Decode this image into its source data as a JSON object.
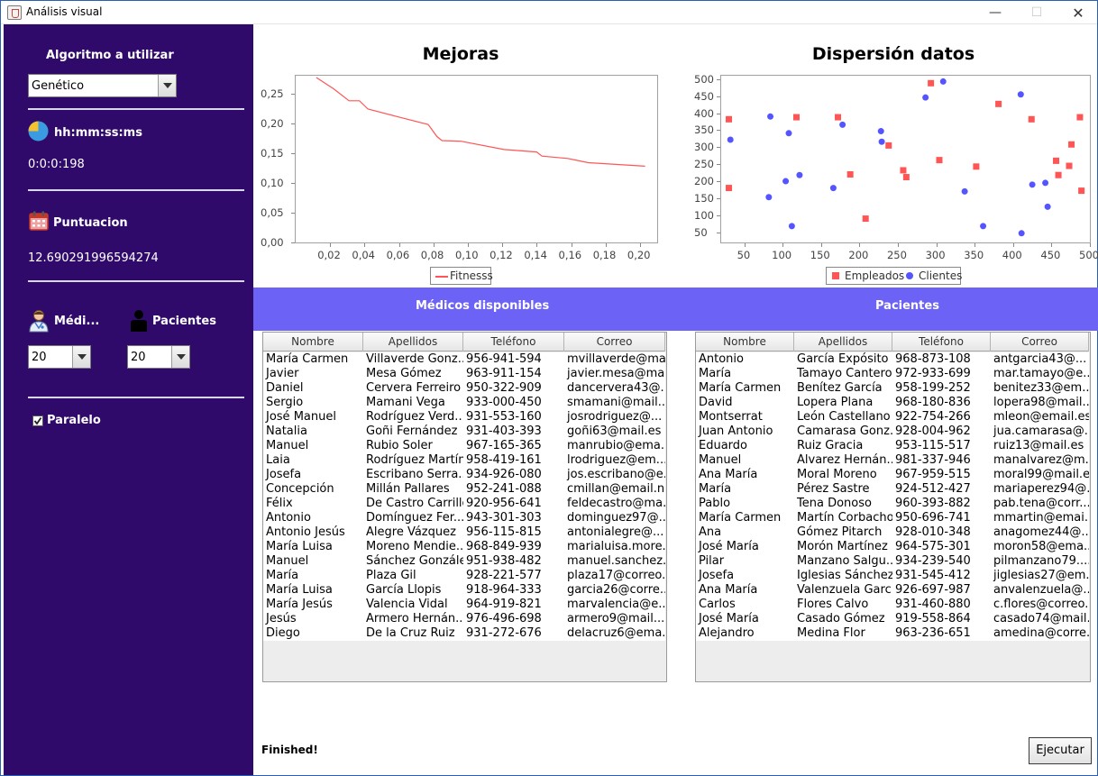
{
  "window": {
    "title": "Análisis visual",
    "minimize": "—",
    "maximize": "☐",
    "close": "✕"
  },
  "sidebar": {
    "algorithm_label": "Algoritmo a utilizar",
    "algorithm_value": "Genético",
    "time_label": "hh:mm:ss:ms",
    "time_value": "0:0:0:198",
    "score_label": "Puntuacion",
    "score_value": "12.690291996594274",
    "medicos_label": "Médi...",
    "pacientes_label": "Pacientes",
    "medicos_count": "20",
    "pacientes_count": "20",
    "paralelo_label": "Paralelo",
    "paralelo_checked": true
  },
  "mejoras_chart": {
    "title": "Mejoras",
    "y_ticks": [
      "0,25",
      "0,20",
      "0,15",
      "0,10",
      "0,05",
      "0,00"
    ],
    "x_ticks": [
      "0,02",
      "0,04",
      "0,06",
      "0,08",
      "0,10",
      "0,12",
      "0,14",
      "0,16",
      "0,18",
      "0,20"
    ],
    "legend": "Fitnesss",
    "line_color": "#ff5555"
  },
  "dispersion_chart": {
    "title": "Dispersión datos",
    "y_ticks": [
      "500",
      "450",
      "400",
      "350",
      "300",
      "250",
      "200",
      "150",
      "100",
      "50"
    ],
    "x_ticks": [
      "50",
      "100",
      "150",
      "200",
      "250",
      "300",
      "350",
      "400",
      "450",
      "500"
    ],
    "legend_a": "Empleados",
    "legend_b": "Clientes",
    "color_a": "#ff5555",
    "color_b": "#5555ff"
  },
  "chart_data": [
    {
      "type": "line",
      "title": "Mejoras",
      "series": [
        {
          "name": "Fitnesss",
          "x": [
            0.012,
            0.022,
            0.031,
            0.037,
            0.042,
            0.058,
            0.077,
            0.082,
            0.085,
            0.096,
            0.121,
            0.14,
            0.143,
            0.158,
            0.17,
            0.203
          ],
          "y": [
            0.277,
            0.258,
            0.238,
            0.238,
            0.224,
            0.212,
            0.198,
            0.178,
            0.171,
            0.17,
            0.156,
            0.152,
            0.145,
            0.141,
            0.134,
            0.128
          ]
        }
      ],
      "xlim": [
        0,
        0.21
      ],
      "ylim": [
        0,
        0.28
      ]
    },
    {
      "type": "scatter",
      "title": "Dispersión datos",
      "series": [
        {
          "name": "Empleados",
          "x": [
            30,
            30,
            118,
            172,
            188,
            208,
            238,
            257,
            261,
            293,
            304,
            352,
            381,
            424,
            456,
            459,
            473,
            476,
            487,
            489
          ],
          "y": [
            180,
            382,
            388,
            388,
            220,
            90,
            305,
            232,
            212,
            488,
            262,
            243,
            427,
            382,
            260,
            218,
            245,
            308,
            388,
            172
          ]
        },
        {
          "name": "Clientes",
          "x": [
            32,
            82,
            84,
            104,
            108,
            112,
            122,
            166,
            178,
            228,
            229,
            286,
            309,
            337,
            361,
            410,
            411,
            425,
            442,
            445
          ],
          "y": [
            322,
            153,
            390,
            200,
            341,
            68,
            218,
            180,
            366,
            347,
            316,
            446,
            493,
            170,
            68,
            455,
            47,
            190,
            195,
            125
          ]
        }
      ],
      "xlim": [
        20,
        500
      ],
      "ylim": [
        20,
        510
      ]
    }
  ],
  "medicos": {
    "header": "Médicos disponibles",
    "columns": [
      "Nombre",
      "Apellidos",
      "Teléfono",
      "Correo"
    ],
    "rows": [
      [
        "María Carmen",
        "Villaverde Gonz...",
        "956-941-594",
        "mvillaverde@ma..."
      ],
      [
        "Javier",
        "Mesa Gómez",
        "963-911-154",
        "javier.mesa@ma..."
      ],
      [
        "Daniel",
        "Cervera Ferreiro",
        "950-322-909",
        "dancervera43@..."
      ],
      [
        "Sergio",
        "Mamani Vega",
        "933-000-450",
        "smamani@mail...."
      ],
      [
        "José Manuel",
        "Rodríguez Verd...",
        "931-553-160",
        "josrodriguez@..."
      ],
      [
        "Natalia",
        "Goñi Fernández",
        "931-403-393",
        "goñi63@mail.es"
      ],
      [
        "Manuel",
        "Rubio Soler",
        "967-165-365",
        "manrubio@ema..."
      ],
      [
        "Laia",
        "Rodríguez Martín",
        "958-419-161",
        "lrodriguez@em..."
      ],
      [
        "Josefa",
        "Escribano Serra...",
        "934-926-080",
        "jos.escribano@e..."
      ],
      [
        "Concepción",
        "Millán Pallares",
        "952-241-088",
        "cmillan@email.n..."
      ],
      [
        "Félix",
        "De Castro Carrillo",
        "920-956-641",
        "feldecastro@ma..."
      ],
      [
        "Antonio",
        "Domínguez Fer...",
        "943-301-303",
        "dominguez97@..."
      ],
      [
        "Antonio Jesús",
        "Alegre Vázquez",
        "956-115-815",
        "antonialegre@..."
      ],
      [
        "María Luisa",
        "Moreno Mendie...",
        "968-849-939",
        "marialuisa.more..."
      ],
      [
        "Manuel",
        "Sánchez González",
        "951-938-482",
        "manuel.sanchez..."
      ],
      [
        "María",
        "Plaza Gil",
        "928-221-577",
        "plaza17@correo..."
      ],
      [
        "María Luisa",
        "García Llopis",
        "918-964-333",
        "garcia26@corre..."
      ],
      [
        "María Jesús",
        "Valencia Vidal",
        "964-919-821",
        "marvalencia@e..."
      ],
      [
        "Jesús",
        "Armero Hernán...",
        "976-496-698",
        "armero9@mail...."
      ],
      [
        "Diego",
        "De la Cruz Ruiz",
        "931-272-676",
        "delacruz6@ema..."
      ]
    ]
  },
  "pacientes": {
    "header": "Pacientes",
    "columns": [
      "Nombre",
      "Apellidos",
      "Teléfono",
      "Correo"
    ],
    "rows": [
      [
        "Antonio",
        "García Expósito",
        "968-873-108",
        "antgarcia43@..."
      ],
      [
        "María",
        "Tamayo Cantero",
        "972-933-699",
        "mar.tamayo@e..."
      ],
      [
        "María Carmen",
        "Benítez García",
        "958-199-252",
        "benitez33@em..."
      ],
      [
        "David",
        "Lopera Plana",
        "968-180-836",
        "lopera98@mail...."
      ],
      [
        "Montserrat",
        "León Castellano",
        "922-754-266",
        "mleon@email.es"
      ],
      [
        "Juan Antonio",
        "Camarasa Gonz...",
        "928-004-962",
        "jua.camarasa@..."
      ],
      [
        "Eduardo",
        "Ruiz Gracia",
        "953-115-517",
        "ruiz13@mail.es"
      ],
      [
        "Manuel",
        "Álvarez Hernán...",
        "981-337-946",
        "manalvarez@m..."
      ],
      [
        "Ana María",
        "Moral Moreno",
        "967-959-515",
        "moral99@mail.es"
      ],
      [
        "María",
        "Pérez Sastre",
        "924-512-427",
        "mariaperez94@..."
      ],
      [
        "Pablo",
        "Tena Donoso",
        "960-393-882",
        "pab.tena@corr..."
      ],
      [
        "María Carmen",
        "Martín Corbacho",
        "950-696-741",
        "mmartin@emai..."
      ],
      [
        "Ana",
        "Gómez Pitarch",
        "928-010-348",
        "anagomez44@..."
      ],
      [
        "José María",
        "Morón Martínez",
        "964-575-301",
        "moron58@ema..."
      ],
      [
        "Pilar",
        "Manzano Salgu...",
        "934-239-540",
        "pilmanzano79...."
      ],
      [
        "Josefa",
        "Iglesias Sánchez",
        "931-545-412",
        "jiglesias27@em..."
      ],
      [
        "Ana María",
        "Valenzuela Garc...",
        "926-697-987",
        "anvalenzuela@..."
      ],
      [
        "Carlos",
        "Flores Calvo",
        "931-460-880",
        "c.flores@correo...."
      ],
      [
        "José María",
        "Casado Gómez",
        "919-558-864",
        "casado74@mail...."
      ],
      [
        "Alejandro",
        "Medina Flor",
        "963-236-651",
        "amedina@corre..."
      ]
    ]
  },
  "status_text": "Finished!",
  "execute_label": "Ejecutar"
}
